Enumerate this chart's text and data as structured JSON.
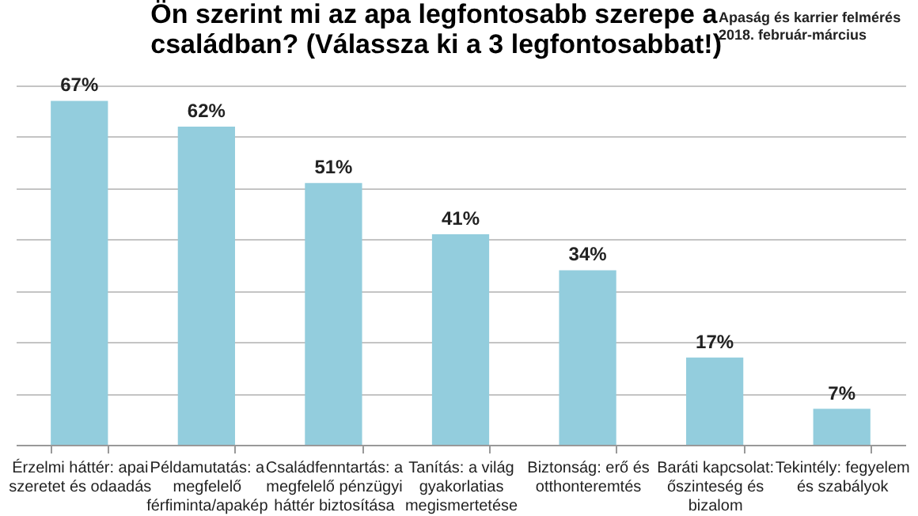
{
  "chart_data": {
    "type": "bar",
    "title": "Ön szerint mi az apa legfontosabb szerepe a családban? (Válassza ki a 3 legfontosabbat!)",
    "annotations": [
      "Apaság és karrier felmérés 2018. február-március"
    ],
    "categories": [
      "Érzelmi háttér: apai szeretet és odaadás",
      "Példamutatás: a megfelelő férfiminta/apakép",
      "Családfenntartás: a megfelelő pénzügyi háttér biztosítása",
      "Tanítás: a világ gyakorlatias megismertetése",
      "Biztonság: erő és otthonteremtés",
      "Baráti kapcsolat: őszinteség és bizalom",
      "Tekintély: fegyelem és szabályok"
    ],
    "values": [
      67,
      62,
      51,
      41,
      34,
      17,
      7
    ],
    "value_labels": [
      "67%",
      "62%",
      "51%",
      "41%",
      "34%",
      "17%",
      "7%"
    ],
    "color": "#93cddd",
    "tick_labels": "x",
    "grid": "y"
  }
}
